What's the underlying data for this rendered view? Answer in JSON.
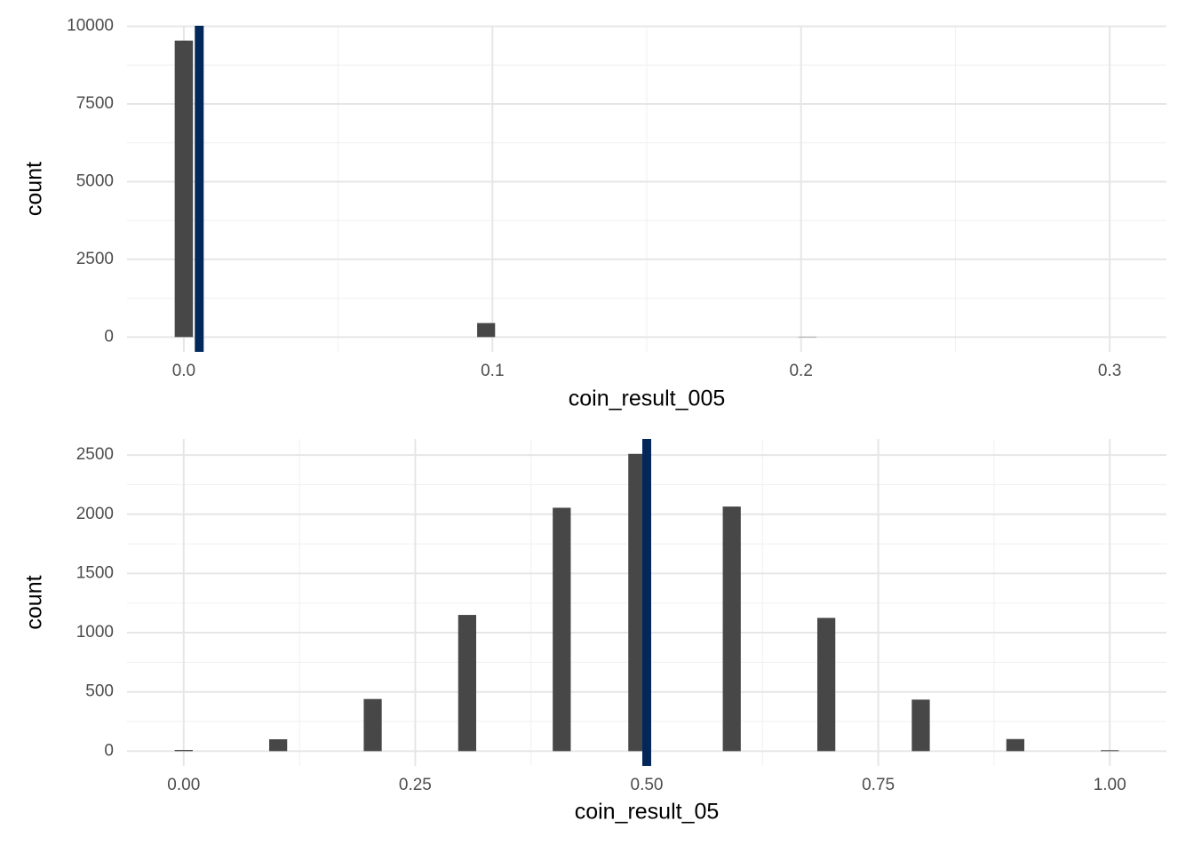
{
  "chart_data": [
    {
      "type": "histogram",
      "x_label": "coin_result_005",
      "y_label": "count",
      "color": "#474747",
      "bins": [
        -0.0031,
        0.0031,
        0.0092,
        0.0153,
        0.0214,
        0.0276,
        0.0337,
        0.0398,
        0.0459,
        0.052,
        0.0582,
        0.0643,
        0.0704,
        0.0765,
        0.0827,
        0.0888,
        0.0949,
        0.101,
        0.1071,
        0.1133,
        0.1194,
        0.1255,
        0.1316,
        0.1378,
        0.1439,
        0.15,
        0.1561,
        0.1622,
        0.1684,
        0.1745,
        0.1806,
        0.1867,
        0.1929,
        0.199,
        0.2051,
        0.2112,
        0.2173,
        0.2235,
        0.2296,
        0.2357,
        0.2418,
        0.248,
        0.2541,
        0.2602,
        0.2663,
        0.2724,
        0.2786,
        0.2847,
        0.2908,
        0.2969,
        0.3031
      ],
      "counts": [
        9540,
        0,
        0,
        0,
        0,
        0,
        0,
        0,
        0,
        0,
        0,
        0,
        0,
        0,
        0,
        0,
        450,
        0,
        0,
        0,
        0,
        0,
        0,
        0,
        0,
        0,
        0,
        0,
        0,
        0,
        0,
        0,
        0,
        10,
        0,
        0,
        0,
        0,
        0,
        0,
        0,
        0,
        0,
        0,
        0,
        0,
        0,
        0,
        0,
        0
      ],
      "vline": {
        "x": 0.005,
        "color": "#02285a"
      },
      "xlim": [
        -0.0184,
        0.3184
      ],
      "ylim": [
        -477,
        10017
      ],
      "xticks": [
        {
          "value": 0,
          "label": "0.0"
        },
        0.1,
        0.2,
        0.3
      ],
      "yticks": [
        0,
        2500,
        5000,
        7500,
        10000
      ],
      "minor_xticks": [
        0.05,
        0.15,
        0.25
      ],
      "minor_yticks": [
        1250,
        3750,
        6250,
        8750
      ],
      "grid": true
    },
    {
      "type": "histogram",
      "x_label": "coin_result_05",
      "y_label": "count",
      "color": "#474747",
      "bins": [
        -0.0102,
        0.0102,
        0.0306,
        0.051,
        0.0714,
        0.0918,
        0.1122,
        0.1327,
        0.1531,
        0.1735,
        0.1939,
        0.2143,
        0.2347,
        0.2551,
        0.2755,
        0.2959,
        0.3163,
        0.3367,
        0.3571,
        0.3776,
        0.398,
        0.4184,
        0.4388,
        0.4592,
        0.4796,
        0.5,
        0.5204,
        0.5408,
        0.5612,
        0.5816,
        0.602,
        0.6224,
        0.6429,
        0.6633,
        0.6837,
        0.7041,
        0.7245,
        0.7449,
        0.7653,
        0.7857,
        0.8061,
        0.8265,
        0.8469,
        0.8673,
        0.8878,
        0.9082,
        0.9286,
        0.949,
        0.9694,
        0.9898,
        1.0102
      ],
      "counts": [
        10,
        0,
        0,
        0,
        0,
        100,
        0,
        0,
        0,
        0,
        440,
        0,
        0,
        0,
        0,
        1150,
        0,
        0,
        0,
        0,
        2055,
        0,
        0,
        0,
        2510,
        0,
        0,
        0,
        0,
        2065,
        0,
        0,
        0,
        0,
        1125,
        0,
        0,
        0,
        0,
        435,
        0,
        0,
        0,
        0,
        102,
        0,
        0,
        0,
        0,
        8
      ],
      "vline": {
        "x": 0.5,
        "color": "#02285a"
      },
      "xlim": [
        -0.0612,
        1.0612
      ],
      "ylim": [
        -125,
        2636
      ],
      "xticks": [
        {
          "value": 0,
          "label": "0.00"
        },
        {
          "value": 0.25,
          "label": "0.25"
        },
        {
          "value": 0.5,
          "label": "0.50"
        },
        {
          "value": 0.75,
          "label": "0.75"
        },
        {
          "value": 1,
          "label": "1.00"
        }
      ],
      "yticks": [
        0,
        500,
        1000,
        1500,
        2000,
        2500
      ],
      "minor_xticks": [
        0.125,
        0.375,
        0.625,
        0.875
      ],
      "minor_yticks": [
        250,
        750,
        1250,
        1750,
        2250
      ],
      "grid": true
    }
  ]
}
